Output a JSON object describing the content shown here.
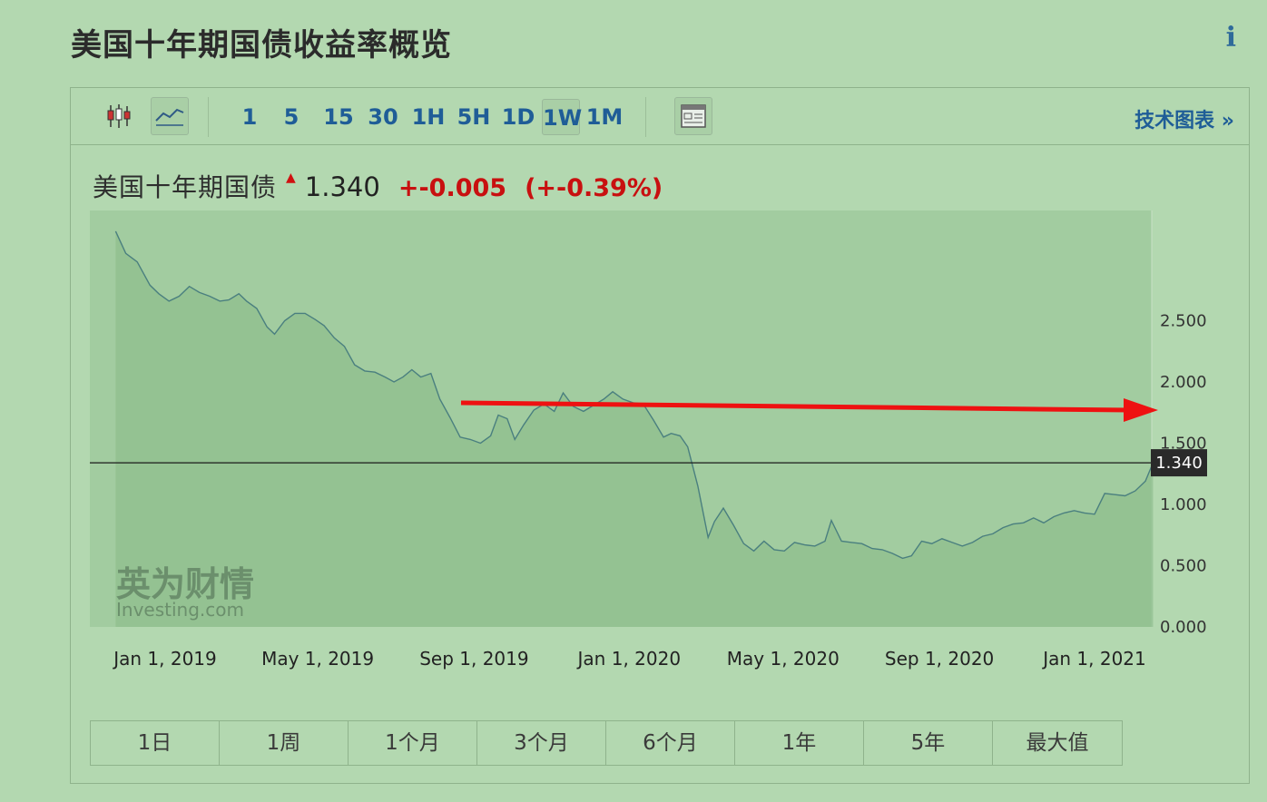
{
  "page": {
    "title": "美国十年期国债收益率概览",
    "info_icon": "info-icon"
  },
  "toolbar": {
    "candlestick_icon": "candlestick-chart-icon",
    "line_icon": "line-chart-icon",
    "intervals": [
      "1",
      "5",
      "15",
      "30",
      "1H",
      "5H",
      "1D",
      "1W",
      "1M"
    ],
    "active_interval": "1W",
    "data_table_icon": "data-table-icon",
    "tech_chart_label": "技术图表 »"
  },
  "quote": {
    "name": "美国十年期国债",
    "price": "1.340",
    "change": "+-0.005",
    "change_pct": "(+-0.39%)",
    "up_color": "#d01010"
  },
  "chart_data": {
    "type": "area",
    "x_tick_labels": [
      "Jan 1, 2019",
      "May 1, 2019",
      "Sep 1, 2019",
      "Jan 1, 2020",
      "May 1, 2020",
      "Sep 1, 2020",
      "Jan 1, 2021"
    ],
    "y_tick_labels": [
      "0.000",
      "0.500",
      "1.000",
      "1.500",
      "2.000",
      "2.500"
    ],
    "ylim": [
      0,
      3.4
    ],
    "last_value_label": "1.340",
    "last_value": 1.34,
    "line_color": "#4a7f7f",
    "series": [
      {
        "points": [
          [
            "2018-11-23",
            3.23
          ],
          [
            "2018-12-01",
            3.05
          ],
          [
            "2018-12-10",
            2.98
          ],
          [
            "2018-12-20",
            2.79
          ],
          [
            "2018-12-27",
            2.72
          ],
          [
            "2019-01-04",
            2.66
          ],
          [
            "2019-01-12",
            2.7
          ],
          [
            "2019-01-20",
            2.78
          ],
          [
            "2019-01-28",
            2.73
          ],
          [
            "2019-02-05",
            2.7
          ],
          [
            "2019-02-13",
            2.66
          ],
          [
            "2019-02-20",
            2.67
          ],
          [
            "2019-02-28",
            2.72
          ],
          [
            "2019-03-06",
            2.66
          ],
          [
            "2019-03-14",
            2.6
          ],
          [
            "2019-03-22",
            2.45
          ],
          [
            "2019-03-28",
            2.39
          ],
          [
            "2019-04-05",
            2.5
          ],
          [
            "2019-04-13",
            2.56
          ],
          [
            "2019-04-21",
            2.56
          ],
          [
            "2019-04-29",
            2.51
          ],
          [
            "2019-05-06",
            2.46
          ],
          [
            "2019-05-14",
            2.36
          ],
          [
            "2019-05-22",
            2.29
          ],
          [
            "2019-05-30",
            2.14
          ],
          [
            "2019-06-07",
            2.09
          ],
          [
            "2019-06-15",
            2.08
          ],
          [
            "2019-06-23",
            2.04
          ],
          [
            "2019-06-30",
            2.0
          ],
          [
            "2019-07-07",
            2.04
          ],
          [
            "2019-07-14",
            2.1
          ],
          [
            "2019-07-21",
            2.04
          ],
          [
            "2019-07-29",
            2.07
          ],
          [
            "2019-08-05",
            1.86
          ],
          [
            "2019-08-13",
            1.71
          ],
          [
            "2019-08-21",
            1.55
          ],
          [
            "2019-08-29",
            1.53
          ],
          [
            "2019-09-06",
            1.5
          ],
          [
            "2019-09-14",
            1.56
          ],
          [
            "2019-09-20",
            1.73
          ],
          [
            "2019-09-27",
            1.7
          ],
          [
            "2019-10-03",
            1.53
          ],
          [
            "2019-10-10",
            1.65
          ],
          [
            "2019-10-18",
            1.77
          ],
          [
            "2019-10-26",
            1.82
          ],
          [
            "2019-11-03",
            1.76
          ],
          [
            "2019-11-10",
            1.91
          ],
          [
            "2019-11-18",
            1.8
          ],
          [
            "2019-11-26",
            1.76
          ],
          [
            "2019-12-04",
            1.81
          ],
          [
            "2019-12-12",
            1.86
          ],
          [
            "2019-12-19",
            1.92
          ],
          [
            "2019-12-27",
            1.86
          ],
          [
            "2020-01-04",
            1.83
          ],
          [
            "2020-01-12",
            1.82
          ],
          [
            "2020-01-20",
            1.69
          ],
          [
            "2020-01-28",
            1.55
          ],
          [
            "2020-02-03",
            1.58
          ],
          [
            "2020-02-10",
            1.56
          ],
          [
            "2020-02-16",
            1.47
          ],
          [
            "2020-02-24",
            1.15
          ],
          [
            "2020-03-03",
            0.73
          ],
          [
            "2020-03-08",
            0.86
          ],
          [
            "2020-03-15",
            0.97
          ],
          [
            "2020-03-23",
            0.83
          ],
          [
            "2020-03-31",
            0.68
          ],
          [
            "2020-04-08",
            0.62
          ],
          [
            "2020-04-16",
            0.7
          ],
          [
            "2020-04-24",
            0.63
          ],
          [
            "2020-05-02",
            0.62
          ],
          [
            "2020-05-10",
            0.69
          ],
          [
            "2020-05-18",
            0.67
          ],
          [
            "2020-05-26",
            0.66
          ],
          [
            "2020-06-03",
            0.7
          ],
          [
            "2020-06-08",
            0.87
          ],
          [
            "2020-06-16",
            0.7
          ],
          [
            "2020-06-24",
            0.69
          ],
          [
            "2020-07-02",
            0.68
          ],
          [
            "2020-07-10",
            0.64
          ],
          [
            "2020-07-18",
            0.63
          ],
          [
            "2020-07-26",
            0.6
          ],
          [
            "2020-08-03",
            0.56
          ],
          [
            "2020-08-10",
            0.58
          ],
          [
            "2020-08-18",
            0.7
          ],
          [
            "2020-08-26",
            0.68
          ],
          [
            "2020-09-03",
            0.72
          ],
          [
            "2020-09-11",
            0.69
          ],
          [
            "2020-09-19",
            0.66
          ],
          [
            "2020-09-27",
            0.69
          ],
          [
            "2020-10-05",
            0.74
          ],
          [
            "2020-10-13",
            0.76
          ],
          [
            "2020-10-21",
            0.81
          ],
          [
            "2020-10-29",
            0.84
          ],
          [
            "2020-11-06",
            0.85
          ],
          [
            "2020-11-14",
            0.89
          ],
          [
            "2020-11-22",
            0.85
          ],
          [
            "2020-11-30",
            0.9
          ],
          [
            "2020-12-08",
            0.93
          ],
          [
            "2020-12-16",
            0.95
          ],
          [
            "2020-12-24",
            0.93
          ],
          [
            "2021-01-01",
            0.92
          ],
          [
            "2021-01-09",
            1.09
          ],
          [
            "2021-01-17",
            1.08
          ],
          [
            "2021-01-25",
            1.07
          ],
          [
            "2021-02-02",
            1.11
          ],
          [
            "2021-02-10",
            1.19
          ],
          [
            "2021-02-16",
            1.34
          ]
        ]
      }
    ],
    "annotation": {
      "type": "arrow",
      "color": "#ee1111"
    }
  },
  "range_buttons": [
    "1日",
    "1周",
    "1个月",
    "3个月",
    "6个月",
    "1年",
    "5年",
    "最大值"
  ]
}
